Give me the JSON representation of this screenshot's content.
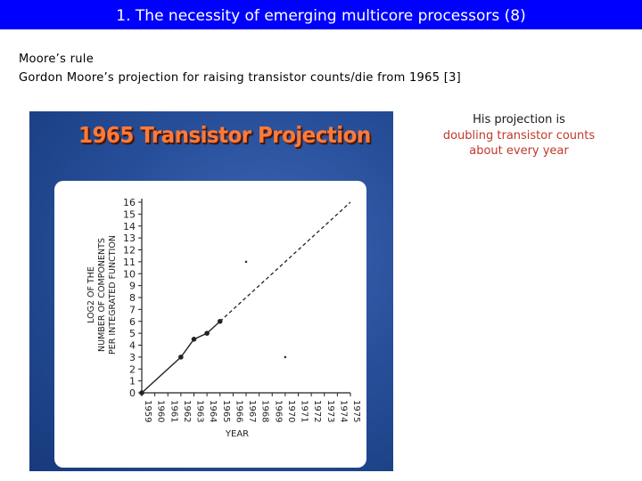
{
  "slide": {
    "title": "1. The necessity of emerging multicore processors (8)",
    "line1": "Moore’s rule",
    "line2": "Gordon Moore’s projection for raising transistor counts/die from 1965 [3]"
  },
  "note": {
    "line1": "His projection is",
    "line2": "doubling transistor counts",
    "line3": "about every year"
  },
  "colors": {
    "title_bar": "#0000ff",
    "note_highlight": "#c0392b",
    "figure_title": "#ff7a38"
  },
  "figure": {
    "title": "1965 Transistor Projection"
  },
  "chart_data": {
    "type": "line",
    "title": "1965 Transistor Projection",
    "xlabel": "YEAR",
    "ylabel_lines": [
      "LOG2 OF THE",
      "NUMBER OF COMPONENTS",
      "PER INTEGRATED FUNCTION"
    ],
    "xlim": [
      1959,
      1975
    ],
    "ylim": [
      0,
      16
    ],
    "x_ticks": [
      1959,
      1960,
      1961,
      1962,
      1963,
      1964,
      1965,
      1966,
      1967,
      1968,
      1969,
      1970,
      1971,
      1972,
      1973,
      1974,
      1975
    ],
    "y_ticks": [
      0,
      1,
      2,
      3,
      4,
      5,
      6,
      7,
      8,
      9,
      10,
      11,
      12,
      13,
      14,
      15,
      16
    ],
    "grid": false,
    "series": [
      {
        "style": "solid-with-markers",
        "points": [
          [
            1959,
            0
          ],
          [
            1962,
            3
          ],
          [
            1963,
            4.5
          ],
          [
            1964,
            5
          ],
          [
            1965,
            6
          ]
        ]
      },
      {
        "style": "dashed",
        "points": [
          [
            1965,
            6
          ],
          [
            1975,
            16
          ]
        ]
      }
    ],
    "stray_points": [
      [
        1967,
        11
      ],
      [
        1970,
        3
      ]
    ]
  }
}
